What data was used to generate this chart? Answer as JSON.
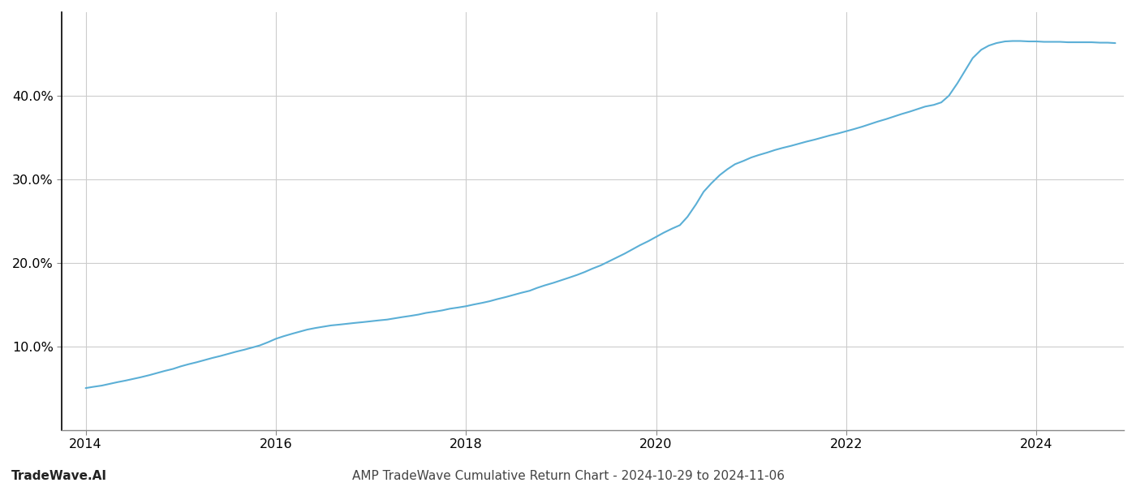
{
  "title": "AMP TradeWave Cumulative Return Chart - 2024-10-29 to 2024-11-06",
  "watermark": "TradeWave.AI",
  "line_color": "#5bafd6",
  "background_color": "#ffffff",
  "grid_color": "#cccccc",
  "x_values": [
    2014.0,
    2014.08,
    2014.17,
    2014.25,
    2014.33,
    2014.42,
    2014.5,
    2014.58,
    2014.67,
    2014.75,
    2014.83,
    2014.92,
    2015.0,
    2015.08,
    2015.17,
    2015.25,
    2015.33,
    2015.42,
    2015.5,
    2015.58,
    2015.67,
    2015.75,
    2015.83,
    2015.92,
    2016.0,
    2016.08,
    2016.17,
    2016.25,
    2016.33,
    2016.42,
    2016.5,
    2016.58,
    2016.67,
    2016.75,
    2016.83,
    2016.92,
    2017.0,
    2017.08,
    2017.17,
    2017.25,
    2017.33,
    2017.42,
    2017.5,
    2017.58,
    2017.67,
    2017.75,
    2017.83,
    2017.92,
    2018.0,
    2018.08,
    2018.17,
    2018.25,
    2018.33,
    2018.42,
    2018.5,
    2018.58,
    2018.67,
    2018.75,
    2018.83,
    2018.92,
    2019.0,
    2019.08,
    2019.17,
    2019.25,
    2019.33,
    2019.42,
    2019.5,
    2019.58,
    2019.67,
    2019.75,
    2019.83,
    2019.92,
    2020.0,
    2020.08,
    2020.17,
    2020.25,
    2020.33,
    2020.42,
    2020.5,
    2020.58,
    2020.67,
    2020.75,
    2020.83,
    2020.92,
    2021.0,
    2021.08,
    2021.17,
    2021.25,
    2021.33,
    2021.42,
    2021.5,
    2021.58,
    2021.67,
    2021.75,
    2021.83,
    2021.92,
    2022.0,
    2022.08,
    2022.17,
    2022.25,
    2022.33,
    2022.42,
    2022.5,
    2022.58,
    2022.67,
    2022.75,
    2022.83,
    2022.92,
    2023.0,
    2023.08,
    2023.17,
    2023.25,
    2023.33,
    2023.42,
    2023.5,
    2023.58,
    2023.67,
    2023.75,
    2023.83,
    2023.92,
    2024.0,
    2024.08,
    2024.17,
    2024.25,
    2024.33,
    2024.42,
    2024.5,
    2024.58,
    2024.67,
    2024.75,
    2024.83
  ],
  "y_values": [
    5.0,
    5.15,
    5.3,
    5.5,
    5.7,
    5.9,
    6.1,
    6.3,
    6.55,
    6.8,
    7.05,
    7.3,
    7.6,
    7.85,
    8.1,
    8.35,
    8.6,
    8.85,
    9.1,
    9.35,
    9.6,
    9.85,
    10.1,
    10.5,
    10.9,
    11.2,
    11.5,
    11.75,
    12.0,
    12.2,
    12.35,
    12.5,
    12.6,
    12.7,
    12.8,
    12.9,
    13.0,
    13.1,
    13.2,
    13.35,
    13.5,
    13.65,
    13.8,
    14.0,
    14.15,
    14.3,
    14.5,
    14.65,
    14.8,
    15.0,
    15.2,
    15.4,
    15.65,
    15.9,
    16.15,
    16.4,
    16.65,
    17.0,
    17.3,
    17.6,
    17.9,
    18.2,
    18.55,
    18.9,
    19.3,
    19.7,
    20.15,
    20.6,
    21.1,
    21.6,
    22.1,
    22.6,
    23.1,
    23.6,
    24.1,
    24.5,
    25.5,
    27.0,
    28.5,
    29.5,
    30.5,
    31.2,
    31.8,
    32.2,
    32.6,
    32.9,
    33.2,
    33.5,
    33.75,
    34.0,
    34.25,
    34.5,
    34.75,
    35.0,
    35.25,
    35.5,
    35.75,
    36.0,
    36.3,
    36.6,
    36.9,
    37.2,
    37.5,
    37.8,
    38.1,
    38.4,
    38.7,
    38.9,
    39.2,
    40.0,
    41.5,
    43.0,
    44.5,
    45.5,
    46.0,
    46.3,
    46.5,
    46.55,
    46.55,
    46.5,
    46.5,
    46.45,
    46.45,
    46.45,
    46.4,
    46.4,
    46.4,
    46.4,
    46.35,
    46.35,
    46.3
  ],
  "xlim": [
    2013.75,
    2024.92
  ],
  "ylim": [
    0,
    50
  ],
  "yticks": [
    10.0,
    20.0,
    30.0,
    40.0
  ],
  "xticks": [
    2014,
    2016,
    2018,
    2020,
    2022,
    2024
  ],
  "line_width": 1.5,
  "title_fontsize": 11,
  "watermark_fontsize": 11,
  "tick_fontsize": 11.5,
  "spine_color": "#888888"
}
